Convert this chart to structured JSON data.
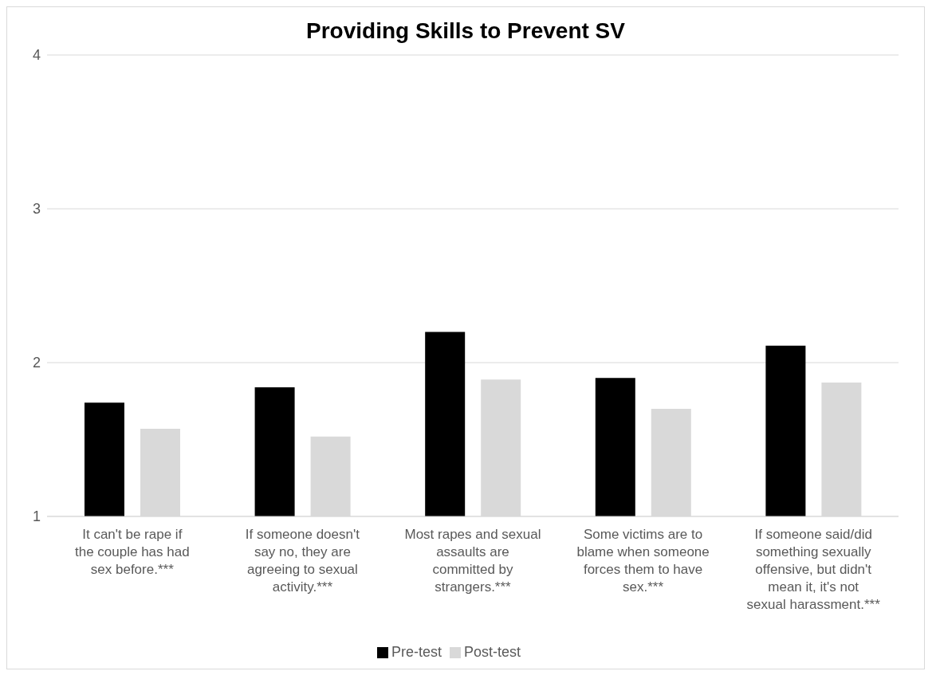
{
  "chart_data": {
    "type": "bar",
    "title": "Providing Skills to Prevent SV",
    "categories": [
      "It can't be rape if the couple has had sex before.***",
      "If someone doesn't say no, they are agreeing to sexual activity.***",
      "Most rapes and sexual assaults are committed by strangers.***",
      "Some victims are to blame when someone forces them to have sex.***",
      "If someone said/did something sexually offensive, but didn't mean it, it's not sexual harassment.***"
    ],
    "series": [
      {
        "name": "Pre-test",
        "color": "#000000",
        "values": [
          1.74,
          1.84,
          2.2,
          1.9,
          2.11
        ]
      },
      {
        "name": "Post-test",
        "color": "#d9d9d9",
        "values": [
          1.57,
          1.52,
          1.89,
          1.7,
          1.87
        ]
      }
    ],
    "ylim": [
      1,
      4
    ],
    "yticks": [
      1,
      2,
      3,
      4
    ],
    "grid": "y",
    "legend": "bottom"
  }
}
